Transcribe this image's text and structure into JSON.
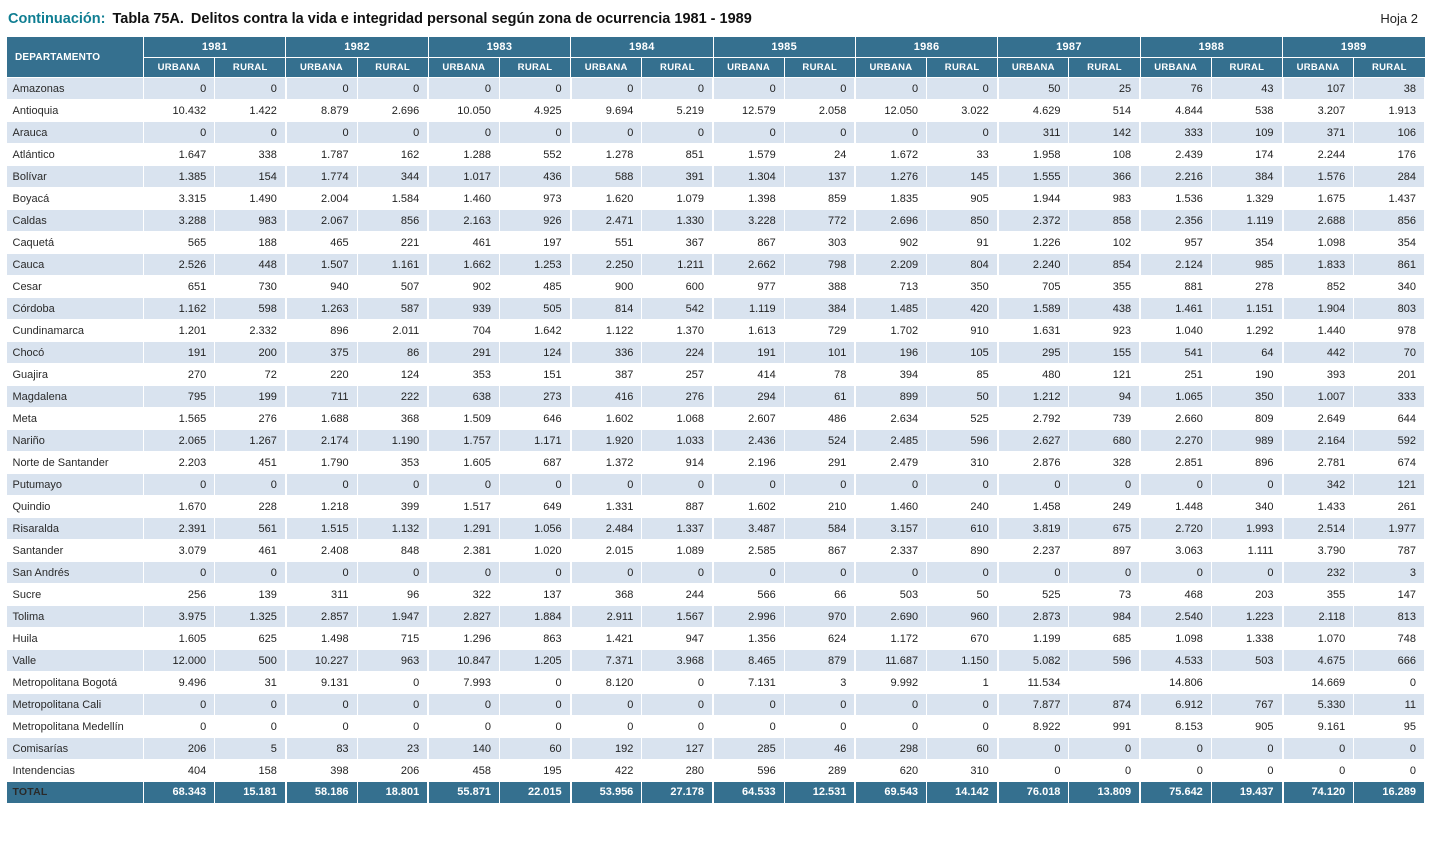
{
  "header": {
    "prefix": "Continuación:",
    "table_number": "Tabla 75A.",
    "title": "Delitos contra la vida e integridad personal según zona de ocurrencia 1981 - 1989",
    "page": "Hoja 2"
  },
  "colors": {
    "header_bg": "#35708f",
    "alt_row_bg": "#d9e3ef",
    "title_accent": "#0f7e92"
  },
  "table": {
    "department_header": "DEPARTAMENTO",
    "years": [
      "1981",
      "1982",
      "1983",
      "1984",
      "1985",
      "1986",
      "1987",
      "1988",
      "1989"
    ],
    "zone_headers": [
      "URBANA",
      "RURAL"
    ],
    "rows": [
      {
        "name": "Amazonas",
        "values": [
          "0",
          "0",
          "0",
          "0",
          "0",
          "0",
          "0",
          "0",
          "0",
          "0",
          "0",
          "0",
          "50",
          "25",
          "76",
          "43",
          "107",
          "38"
        ]
      },
      {
        "name": "Antioquia",
        "values": [
          "10.432",
          "1.422",
          "8.879",
          "2.696",
          "10.050",
          "4.925",
          "9.694",
          "5.219",
          "12.579",
          "2.058",
          "12.050",
          "3.022",
          "4.629",
          "514",
          "4.844",
          "538",
          "3.207",
          "1.913"
        ]
      },
      {
        "name": "Arauca",
        "values": [
          "0",
          "0",
          "0",
          "0",
          "0",
          "0",
          "0",
          "0",
          "0",
          "0",
          "0",
          "0",
          "311",
          "142",
          "333",
          "109",
          "371",
          "106"
        ]
      },
      {
        "name": "Atlántico",
        "values": [
          "1.647",
          "338",
          "1.787",
          "162",
          "1.288",
          "552",
          "1.278",
          "851",
          "1.579",
          "24",
          "1.672",
          "33",
          "1.958",
          "108",
          "2.439",
          "174",
          "2.244",
          "176"
        ]
      },
      {
        "name": "Bolívar",
        "values": [
          "1.385",
          "154",
          "1.774",
          "344",
          "1.017",
          "436",
          "588",
          "391",
          "1.304",
          "137",
          "1.276",
          "145",
          "1.555",
          "366",
          "2.216",
          "384",
          "1.576",
          "284"
        ]
      },
      {
        "name": "Boyacá",
        "values": [
          "3.315",
          "1.490",
          "2.004",
          "1.584",
          "1.460",
          "973",
          "1.620",
          "1.079",
          "1.398",
          "859",
          "1.835",
          "905",
          "1.944",
          "983",
          "1.536",
          "1.329",
          "1.675",
          "1.437"
        ]
      },
      {
        "name": "Caldas",
        "values": [
          "3.288",
          "983",
          "2.067",
          "856",
          "2.163",
          "926",
          "2.471",
          "1.330",
          "3.228",
          "772",
          "2.696",
          "850",
          "2.372",
          "858",
          "2.356",
          "1.119",
          "2.688",
          "856"
        ]
      },
      {
        "name": "Caquetá",
        "values": [
          "565",
          "188",
          "465",
          "221",
          "461",
          "197",
          "551",
          "367",
          "867",
          "303",
          "902",
          "91",
          "1.226",
          "102",
          "957",
          "354",
          "1.098",
          "354"
        ]
      },
      {
        "name": "Cauca",
        "values": [
          "2.526",
          "448",
          "1.507",
          "1.161",
          "1.662",
          "1.253",
          "2.250",
          "1.211",
          "2.662",
          "798",
          "2.209",
          "804",
          "2.240",
          "854",
          "2.124",
          "985",
          "1.833",
          "861"
        ]
      },
      {
        "name": "Cesar",
        "values": [
          "651",
          "730",
          "940",
          "507",
          "902",
          "485",
          "900",
          "600",
          "977",
          "388",
          "713",
          "350",
          "705",
          "355",
          "881",
          "278",
          "852",
          "340"
        ]
      },
      {
        "name": "Córdoba",
        "values": [
          "1.162",
          "598",
          "1.263",
          "587",
          "939",
          "505",
          "814",
          "542",
          "1.119",
          "384",
          "1.485",
          "420",
          "1.589",
          "438",
          "1.461",
          "1.151",
          "1.904",
          "803"
        ]
      },
      {
        "name": "Cundinamarca",
        "values": [
          "1.201",
          "2.332",
          "896",
          "2.011",
          "704",
          "1.642",
          "1.122",
          "1.370",
          "1.613",
          "729",
          "1.702",
          "910",
          "1.631",
          "923",
          "1.040",
          "1.292",
          "1.440",
          "978"
        ]
      },
      {
        "name": "Chocó",
        "values": [
          "191",
          "200",
          "375",
          "86",
          "291",
          "124",
          "336",
          "224",
          "191",
          "101",
          "196",
          "105",
          "295",
          "155",
          "541",
          "64",
          "442",
          "70"
        ]
      },
      {
        "name": "Guajira",
        "values": [
          "270",
          "72",
          "220",
          "124",
          "353",
          "151",
          "387",
          "257",
          "414",
          "78",
          "394",
          "85",
          "480",
          "121",
          "251",
          "190",
          "393",
          "201"
        ]
      },
      {
        "name": "Magdalena",
        "values": [
          "795",
          "199",
          "711",
          "222",
          "638",
          "273",
          "416",
          "276",
          "294",
          "61",
          "899",
          "50",
          "1.212",
          "94",
          "1.065",
          "350",
          "1.007",
          "333"
        ]
      },
      {
        "name": "Meta",
        "values": [
          "1.565",
          "276",
          "1.688",
          "368",
          "1.509",
          "646",
          "1.602",
          "1.068",
          "2.607",
          "486",
          "2.634",
          "525",
          "2.792",
          "739",
          "2.660",
          "809",
          "2.649",
          "644"
        ]
      },
      {
        "name": "Nariño",
        "values": [
          "2.065",
          "1.267",
          "2.174",
          "1.190",
          "1.757",
          "1.171",
          "1.920",
          "1.033",
          "2.436",
          "524",
          "2.485",
          "596",
          "2.627",
          "680",
          "2.270",
          "989",
          "2.164",
          "592"
        ]
      },
      {
        "name": "Norte de Santander",
        "values": [
          "2.203",
          "451",
          "1.790",
          "353",
          "1.605",
          "687",
          "1.372",
          "914",
          "2.196",
          "291",
          "2.479",
          "310",
          "2.876",
          "328",
          "2.851",
          "896",
          "2.781",
          "674"
        ]
      },
      {
        "name": "Putumayo",
        "values": [
          "0",
          "0",
          "0",
          "0",
          "0",
          "0",
          "0",
          "0",
          "0",
          "0",
          "0",
          "0",
          "0",
          "0",
          "0",
          "0",
          "342",
          "121"
        ]
      },
      {
        "name": "Quindio",
        "values": [
          "1.670",
          "228",
          "1.218",
          "399",
          "1.517",
          "649",
          "1.331",
          "887",
          "1.602",
          "210",
          "1.460",
          "240",
          "1.458",
          "249",
          "1.448",
          "340",
          "1.433",
          "261"
        ]
      },
      {
        "name": "Risaralda",
        "values": [
          "2.391",
          "561",
          "1.515",
          "1.132",
          "1.291",
          "1.056",
          "2.484",
          "1.337",
          "3.487",
          "584",
          "3.157",
          "610",
          "3.819",
          "675",
          "2.720",
          "1.993",
          "2.514",
          "1.977"
        ]
      },
      {
        "name": "Santander",
        "values": [
          "3.079",
          "461",
          "2.408",
          "848",
          "2.381",
          "1.020",
          "2.015",
          "1.089",
          "2.585",
          "867",
          "2.337",
          "890",
          "2.237",
          "897",
          "3.063",
          "1.111",
          "3.790",
          "787"
        ]
      },
      {
        "name": "San Andrés",
        "values": [
          "0",
          "0",
          "0",
          "0",
          "0",
          "0",
          "0",
          "0",
          "0",
          "0",
          "0",
          "0",
          "0",
          "0",
          "0",
          "0",
          "232",
          "3"
        ]
      },
      {
        "name": "Sucre",
        "values": [
          "256",
          "139",
          "311",
          "96",
          "322",
          "137",
          "368",
          "244",
          "566",
          "66",
          "503",
          "50",
          "525",
          "73",
          "468",
          "203",
          "355",
          "147"
        ]
      },
      {
        "name": "Tolima",
        "values": [
          "3.975",
          "1.325",
          "2.857",
          "1.947",
          "2.827",
          "1.884",
          "2.911",
          "1.567",
          "2.996",
          "970",
          "2.690",
          "960",
          "2.873",
          "984",
          "2.540",
          "1.223",
          "2.118",
          "813"
        ]
      },
      {
        "name": "Huila",
        "values": [
          "1.605",
          "625",
          "1.498",
          "715",
          "1.296",
          "863",
          "1.421",
          "947",
          "1.356",
          "624",
          "1.172",
          "670",
          "1.199",
          "685",
          "1.098",
          "1.338",
          "1.070",
          "748"
        ]
      },
      {
        "name": "Valle",
        "values": [
          "12.000",
          "500",
          "10.227",
          "963",
          "10.847",
          "1.205",
          "7.371",
          "3.968",
          "8.465",
          "879",
          "11.687",
          "1.150",
          "5.082",
          "596",
          "4.533",
          "503",
          "4.675",
          "666"
        ]
      },
      {
        "name": "Metropolitana Bogotá",
        "values": [
          "9.496",
          "31",
          "9.131",
          "0",
          "7.993",
          "0",
          "8.120",
          "0",
          "7.131",
          "3",
          "9.992",
          "1",
          "11.534",
          "",
          "14.806",
          "",
          "14.669",
          "0"
        ]
      },
      {
        "name": "Metropolitana Cali",
        "values": [
          "0",
          "0",
          "0",
          "0",
          "0",
          "0",
          "0",
          "0",
          "0",
          "0",
          "0",
          "0",
          "7.877",
          "874",
          "6.912",
          "767",
          "5.330",
          "11"
        ]
      },
      {
        "name": "Metropolitana Medellín",
        "values": [
          "0",
          "0",
          "0",
          "0",
          "0",
          "0",
          "0",
          "0",
          "0",
          "0",
          "0",
          "0",
          "8.922",
          "991",
          "8.153",
          "905",
          "9.161",
          "95"
        ]
      },
      {
        "name": "Comisarías",
        "values": [
          "206",
          "5",
          "83",
          "23",
          "140",
          "60",
          "192",
          "127",
          "285",
          "46",
          "298",
          "60",
          "0",
          "0",
          "0",
          "0",
          "0",
          "0"
        ]
      },
      {
        "name": "Intendencias",
        "values": [
          "404",
          "158",
          "398",
          "206",
          "458",
          "195",
          "422",
          "280",
          "596",
          "289",
          "620",
          "310",
          "0",
          "0",
          "0",
          "0",
          "0",
          "0"
        ]
      }
    ],
    "total": {
      "name": "TOTAL",
      "values": [
        "68.343",
        "15.181",
        "58.186",
        "18.801",
        "55.871",
        "22.015",
        "53.956",
        "27.178",
        "64.533",
        "12.531",
        "69.543",
        "14.142",
        "76.018",
        "13.809",
        "75.642",
        "19.437",
        "74.120",
        "16.289"
      ]
    }
  }
}
